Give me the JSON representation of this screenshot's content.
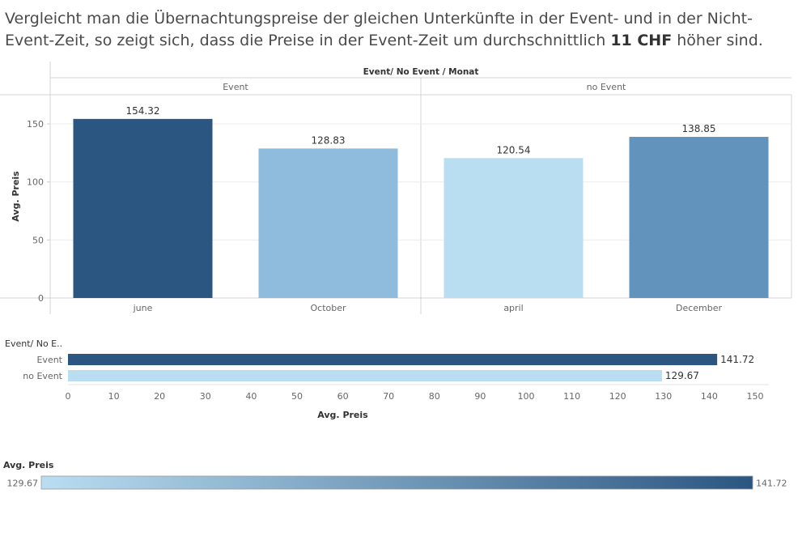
{
  "headline": {
    "text_before": "Vergleicht man die Übernachtungspreise der gleichen Unterkünfte in der Event- und in der Nicht-Event-Zeit, so zeigt sich, dass die Preise in der Event-Zeit um durchschnittlich ",
    "highlight": "11 CHF",
    "text_after": " höher sind."
  },
  "chart_data": [
    {
      "type": "bar",
      "title": "",
      "header_title": "Event/ No Event  /  Monat",
      "groups": [
        {
          "name": "Event",
          "categories": [
            "june",
            "October"
          ],
          "values": [
            154.32,
            128.83
          ]
        },
        {
          "name": "no Event",
          "categories": [
            "april",
            "December"
          ],
          "values": [
            120.54,
            138.85
          ]
        }
      ],
      "ylabel": "Avg. Preis",
      "ylim": [
        0,
        170
      ],
      "yticks": [
        0,
        50,
        100,
        150
      ],
      "data_labels": [
        "154.32",
        "128.83",
        "120.54",
        "138.85"
      ],
      "grid": true,
      "colors": [
        "#2b5681",
        "#8fbbdd",
        "#b9ddf1",
        "#6293bd"
      ]
    },
    {
      "type": "bar",
      "orientation": "horizontal",
      "row_header": "Event/ No E..",
      "categories": [
        "Event",
        "no Event"
      ],
      "values": [
        141.72,
        129.67
      ],
      "data_labels": [
        "141.72",
        "129.67"
      ],
      "xlabel": "Avg. Preis",
      "xlim": [
        0,
        150
      ],
      "xticks": [
        0,
        10,
        20,
        30,
        40,
        50,
        60,
        70,
        80,
        90,
        100,
        110,
        120,
        130,
        140,
        150
      ],
      "colors": [
        "#2b5681",
        "#b9ddf1"
      ]
    }
  ],
  "color_legend": {
    "title": "Avg. Preis",
    "min_label": "129.67",
    "max_label": "141.72",
    "min_color": "#b9ddf1",
    "max_color": "#2b5681"
  }
}
